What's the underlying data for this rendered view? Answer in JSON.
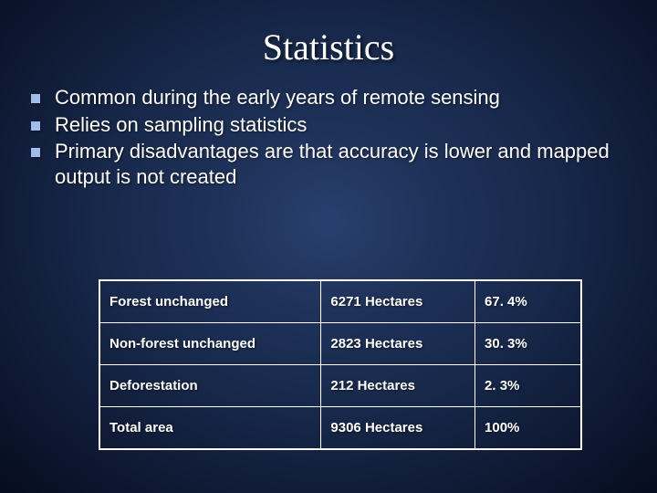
{
  "title": "Statistics",
  "bullets": [
    "Common during the early years of remote sensing",
    "Relies on sampling statistics",
    "Primary disadvantages are that accuracy is lower and mapped output is not created"
  ],
  "table": {
    "columns": [
      "category",
      "hectares",
      "percent"
    ],
    "rows": [
      {
        "category": "Forest unchanged",
        "hectares": "6271 Hectares",
        "percent": "67. 4%"
      },
      {
        "category": "Non-forest unchanged",
        "hectares": "2823 Hectares",
        "percent": "30. 3%"
      },
      {
        "category": "Deforestation",
        "hectares": "212 Hectares",
        "percent": "2. 3%"
      },
      {
        "category": "Total area",
        "hectares": "9306 Hectares",
        "percent": "100%"
      }
    ],
    "border_color": "#ffffff",
    "text_color": "#ffffff",
    "font_size_pt": 11,
    "font_weight": "bold"
  },
  "style": {
    "background_gradient": {
      "center": "#2a3f6e",
      "edge": "#060c1f"
    },
    "title_font": "Georgia",
    "title_fontsize_pt": 30,
    "body_font": "Verdana",
    "body_fontsize_pt": 17,
    "bullet_color": "#a0bce8",
    "text_color": "#ffffff"
  }
}
